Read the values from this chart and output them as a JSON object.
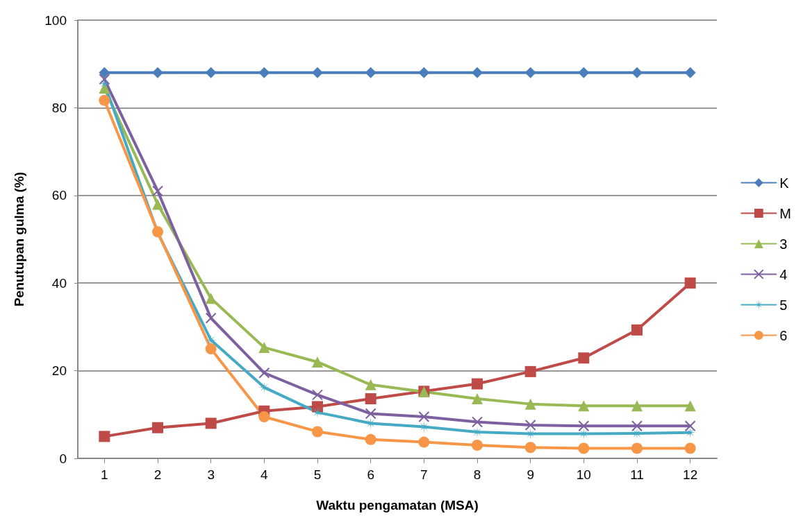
{
  "chart_data": {
    "type": "line",
    "xlabel": "Waktu pengamatan (MSA)",
    "ylabel": "Penutupan gulma (%)",
    "x": [
      1,
      2,
      3,
      4,
      5,
      6,
      7,
      8,
      9,
      10,
      11,
      12
    ],
    "xlim": [
      0.5,
      12.5
    ],
    "xticks": [
      1,
      2,
      3,
      4,
      5,
      6,
      7,
      8,
      9,
      10,
      11,
      12
    ],
    "ylim": [
      0,
      100
    ],
    "yticks": [
      0,
      20,
      40,
      60,
      80,
      100
    ],
    "grid": "y",
    "legend": "right",
    "line_style": "solid",
    "series": [
      {
        "name": "K",
        "color": "#4a7ebb",
        "marker": "diamond",
        "values": [
          88,
          88,
          88,
          88,
          88,
          88,
          88,
          88,
          88,
          88,
          88,
          88
        ]
      },
      {
        "name": "M",
        "color": "#be4b48",
        "marker": "square",
        "values": [
          5,
          7,
          8,
          10.8,
          11.8,
          13.6,
          15.3,
          17,
          19.8,
          22.9,
          29.3,
          40
        ]
      },
      {
        "name": "3",
        "color": "#98b954",
        "marker": "triangle",
        "values": [
          84.5,
          58,
          36.5,
          25.3,
          22,
          16.8,
          15.2,
          13.6,
          12.4,
          12,
          12,
          12
        ]
      },
      {
        "name": "4",
        "color": "#7d60a0",
        "marker": "cross",
        "values": [
          86.5,
          61,
          32,
          19.5,
          14.5,
          10.2,
          9.5,
          8.3,
          7.6,
          7.4,
          7.4,
          7.4
        ]
      },
      {
        "name": "5",
        "color": "#46aac5",
        "marker": "star",
        "values": [
          85.5,
          51.5,
          27,
          16.2,
          10.5,
          8,
          7.2,
          6,
          5.6,
          5.6,
          5.7,
          5.9
        ]
      },
      {
        "name": "6",
        "color": "#f79646",
        "marker": "circle",
        "values": [
          81.7,
          51.7,
          25,
          9.5,
          6.1,
          4.3,
          3.7,
          3,
          2.5,
          2.3,
          2.3,
          2.3
        ]
      }
    ]
  }
}
